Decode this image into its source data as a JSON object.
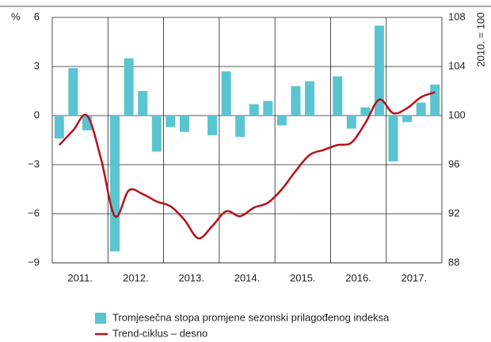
{
  "chart_data": {
    "type": "bar_line",
    "y_label": "%",
    "y2_label": "2010. = 100",
    "year_labels": [
      "2011.",
      "2012.",
      "2013.",
      "2014.",
      "2015.",
      "2016.",
      "2017."
    ],
    "categories": [
      null,
      null,
      null,
      null,
      null,
      null,
      null,
      null,
      null,
      null,
      null,
      null,
      null,
      null,
      null,
      null,
      null,
      null,
      null,
      null,
      null,
      null,
      null,
      null,
      null,
      null,
      null,
      null
    ],
    "series": [
      {
        "name": "Tromjesečna stopa promjene sezonski prilagođenog indeksa",
        "color": "#5bc4d1",
        "kind": "bar",
        "values": [
          -1.4,
          2.9,
          -0.9,
          0,
          -8.3,
          3.5,
          1.5,
          -2.2,
          -0.7,
          -1.0,
          0,
          -1.2,
          2.7,
          -1.3,
          0.7,
          0.9,
          -0.6,
          1.8,
          2.1,
          0,
          2.4,
          -0.8,
          0.5,
          5.5,
          -2.8,
          -0.4,
          0.8,
          1.9
        ]
      },
      {
        "name": "Trend-ciklus – desno",
        "color": "#b5121b",
        "kind": "line",
        "axis": "y2",
        "values": [
          97.6,
          98.8,
          100.0,
          96.5,
          91.8,
          93.9,
          93.6,
          93.0,
          92.6,
          91.5,
          90.0,
          91.0,
          92.2,
          91.8,
          92.5,
          92.9,
          94.0,
          95.5,
          96.8,
          97.2,
          97.6,
          97.8,
          99.4,
          101.3,
          100.2,
          100.6,
          101.5,
          101.9
        ]
      }
    ],
    "ylim": [
      -9,
      6
    ],
    "yticks": [
      {
        "value": -9,
        "label": "−9"
      },
      {
        "value": -6,
        "label": "−6"
      },
      {
        "value": -3,
        "label": "−3"
      },
      0,
      3,
      6
    ],
    "y2lim": [
      88,
      108
    ],
    "y2ticks": [
      88,
      92,
      96,
      100,
      104,
      108
    ],
    "grid": true
  }
}
